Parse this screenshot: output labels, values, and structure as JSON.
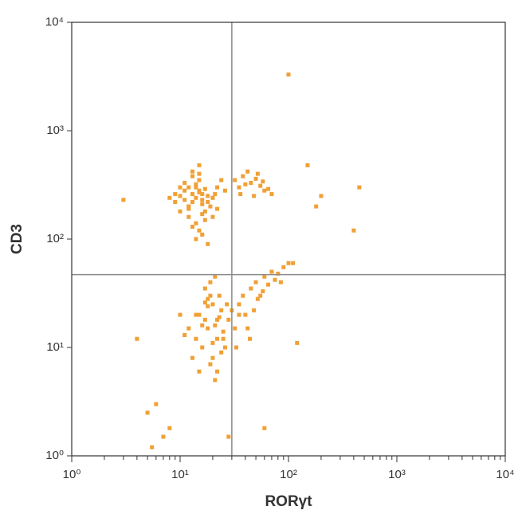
{
  "chart_data": {
    "type": "scatter",
    "x_label": "RORγt",
    "y_label": "CD3",
    "log_x": true,
    "log_y": true,
    "xlim": [
      1,
      10000
    ],
    "ylim": [
      1,
      10000
    ],
    "xticks": [
      {
        "value": 1,
        "label": "10⁰"
      },
      {
        "value": 10,
        "label": "10¹"
      },
      {
        "value": 100,
        "label": "10²"
      },
      {
        "value": 1000,
        "label": "10³"
      },
      {
        "value": 10000,
        "label": "10⁴"
      }
    ],
    "yticks": [
      {
        "value": 1,
        "label": "10⁰"
      },
      {
        "value": 10,
        "label": "10¹"
      },
      {
        "value": 100,
        "label": "10²"
      },
      {
        "value": 1000,
        "label": "10³"
      },
      {
        "value": 10000,
        "label": "10⁴"
      }
    ],
    "quadrant_x": 30,
    "quadrant_y": 47,
    "color": "#f0a035",
    "x": [
      10,
      11,
      12,
      13,
      14,
      15,
      16,
      17,
      18,
      12,
      13,
      14,
      15,
      16,
      17,
      11,
      12,
      13,
      14,
      15,
      16,
      18,
      20,
      22,
      9,
      10,
      11,
      13,
      15,
      17,
      19,
      21,
      14,
      15,
      16,
      12,
      13,
      10,
      9,
      8,
      24,
      26,
      14,
      16,
      18,
      12,
      20,
      22,
      13,
      15,
      32,
      35,
      38,
      40,
      45,
      50,
      55,
      60,
      42,
      48,
      36,
      52,
      65,
      70,
      58,
      15,
      17,
      18,
      20,
      22,
      24,
      16,
      19,
      21,
      23,
      25,
      14,
      13,
      12,
      18,
      20,
      22,
      26,
      28,
      30,
      17,
      19,
      21,
      15,
      11,
      10,
      24,
      27,
      20,
      22,
      18,
      16,
      19,
      23,
      25,
      21,
      17,
      14,
      32,
      35,
      35,
      38,
      40,
      45,
      50,
      55,
      60,
      65,
      70,
      80,
      90,
      42,
      48,
      52,
      58,
      75,
      85,
      100,
      33,
      44,
      100,
      450,
      400,
      200,
      150,
      3,
      5,
      5.5,
      7,
      8,
      28,
      60,
      4,
      180,
      6,
      110,
      120
    ],
    "values": [
      250,
      280,
      300,
      260,
      240,
      270,
      230,
      290,
      250,
      200,
      220,
      320,
      350,
      210,
      180,
      230,
      190,
      260,
      300,
      280,
      260,
      220,
      240,
      300,
      260,
      180,
      330,
      380,
      400,
      150,
      200,
      260,
      140,
      120,
      170,
      160,
      130,
      300,
      220,
      240,
      350,
      280,
      100,
      110,
      90,
      200,
      160,
      190,
      420,
      480,
      350,
      300,
      380,
      320,
      330,
      360,
      310,
      280,
      420,
      250,
      260,
      400,
      290,
      260,
      340,
      20,
      18,
      15,
      25,
      12,
      22,
      10,
      30,
      16,
      19,
      14,
      12,
      8,
      15,
      28,
      8,
      6,
      10,
      18,
      22,
      35,
      40,
      5,
      6,
      13,
      20,
      9,
      25,
      11,
      18,
      24,
      16,
      7,
      30,
      12,
      45,
      26,
      20,
      15,
      20,
      25,
      30,
      20,
      35,
      40,
      30,
      45,
      38,
      50,
      48,
      55,
      15,
      22,
      28,
      33,
      42,
      40,
      60,
      10,
      12,
      3300,
      300,
      120,
      250,
      480,
      230,
      2.5,
      1.2,
      1.5,
      1.8,
      1.5,
      1.8,
      12,
      200,
      3,
      60,
      11
    ]
  }
}
